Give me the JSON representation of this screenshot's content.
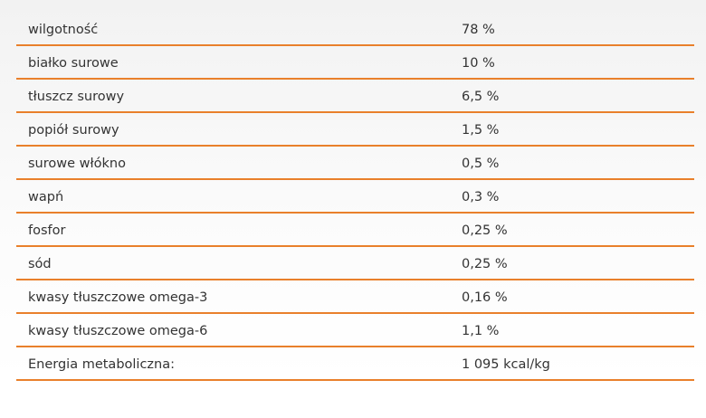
{
  "nutrition": {
    "rows": [
      {
        "name": "wilgotność",
        "value": "78 %"
      },
      {
        "name": "białko surowe",
        "value": "10 %"
      },
      {
        "name": "tłuszcz surowy",
        "value": "6,5 %"
      },
      {
        "name": "popiół surowy",
        "value": "1,5 %"
      },
      {
        "name": "surowe włókno",
        "value": "0,5 %"
      },
      {
        "name": "wapń",
        "value": "0,3 %"
      },
      {
        "name": "fosfor",
        "value": "0,25 %"
      },
      {
        "name": "sód",
        "value": "0,25 %"
      },
      {
        "name": "kwasy tłuszczowe omega-3",
        "value": "0,16 %"
      },
      {
        "name": "kwasy tłuszczowe omega-6",
        "value": "1,1 %"
      },
      {
        "name": "Energia metaboliczna:",
        "value": "1 095 kcal/kg"
      }
    ]
  },
  "colors": {
    "divider": "#e9802b",
    "text": "#333333"
  }
}
